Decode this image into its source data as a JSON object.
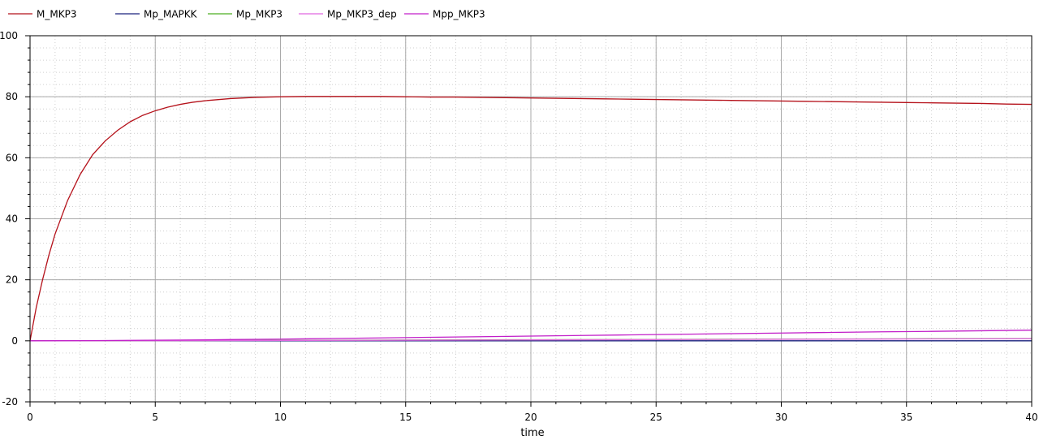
{
  "chart_data": {
    "type": "line",
    "title": "",
    "xlabel": "time",
    "ylabel": "",
    "xlim": [
      0,
      40
    ],
    "ylim": [
      -20,
      100
    ],
    "x_major_ticks": [
      0,
      5,
      10,
      15,
      20,
      25,
      30,
      35,
      40
    ],
    "y_major_ticks": [
      -20,
      0,
      20,
      40,
      60,
      80,
      100
    ],
    "x_tick_labels": [
      "0",
      "5",
      "10",
      "15",
      "20",
      "25",
      "30",
      "35",
      "40"
    ],
    "y_tick_labels": [
      "-20",
      "0",
      "20",
      "40",
      "60",
      "80",
      "100"
    ],
    "grid": true,
    "legend_position": "top-left",
    "series": [
      {
        "name": "M_MKP3",
        "color": "#b5121b",
        "x": [
          0,
          0.25,
          0.5,
          0.75,
          1,
          1.5,
          2,
          2.5,
          3,
          3.5,
          4,
          4.5,
          5,
          5.5,
          6,
          6.5,
          7,
          8,
          9,
          10,
          11,
          12,
          13,
          14,
          15,
          16,
          17,
          18,
          19,
          20,
          21,
          22,
          23,
          24,
          25,
          26,
          27,
          28,
          29,
          30,
          31,
          32,
          33,
          34,
          35,
          36,
          37,
          38,
          39,
          40
        ],
        "values": [
          0,
          11,
          20,
          28,
          35,
          46,
          54.5,
          61,
          65.5,
          69,
          71.8,
          73.9,
          75.4,
          76.6,
          77.5,
          78.2,
          78.7,
          79.4,
          79.8,
          80.0,
          80.1,
          80.1,
          80.1,
          80.1,
          80.0,
          79.9,
          79.9,
          79.8,
          79.7,
          79.6,
          79.5,
          79.4,
          79.3,
          79.2,
          79.1,
          79.0,
          78.9,
          78.8,
          78.7,
          78.6,
          78.5,
          78.4,
          78.3,
          78.2,
          78.1,
          78.0,
          77.9,
          77.8,
          77.6,
          77.5
        ]
      },
      {
        "name": "Mp_MAPKK",
        "color": "#1a237e",
        "x": [
          0,
          5,
          10,
          15,
          20,
          25,
          30,
          35,
          40
        ],
        "values": [
          0,
          0,
          0,
          0,
          0,
          0,
          0,
          0,
          0
        ]
      },
      {
        "name": "Mp_MKP3",
        "color": "#4caf20",
        "x": [
          0,
          5,
          10,
          15,
          20,
          25,
          30,
          35,
          40
        ],
        "values": [
          0,
          0.05,
          0.15,
          0.25,
          0.35,
          0.45,
          0.55,
          0.65,
          0.75
        ]
      },
      {
        "name": "Mp_MKP3_dep",
        "color": "#e066e0",
        "x": [
          0,
          5,
          10,
          15,
          20,
          25,
          30,
          35,
          40
        ],
        "values": [
          0,
          0.04,
          0.12,
          0.2,
          0.3,
          0.4,
          0.5,
          0.6,
          0.7
        ]
      },
      {
        "name": "Mpp_MKP3",
        "color": "#c21fc9",
        "x": [
          0,
          2,
          4,
          6,
          8,
          10,
          12,
          14,
          16,
          18,
          20,
          22,
          24,
          26,
          28,
          30,
          32,
          34,
          36,
          38,
          40
        ],
        "values": [
          0,
          0.05,
          0.15,
          0.25,
          0.4,
          0.55,
          0.75,
          0.95,
          1.15,
          1.35,
          1.55,
          1.75,
          1.95,
          2.15,
          2.35,
          2.55,
          2.75,
          2.95,
          3.1,
          3.3,
          3.5
        ]
      }
    ]
  }
}
